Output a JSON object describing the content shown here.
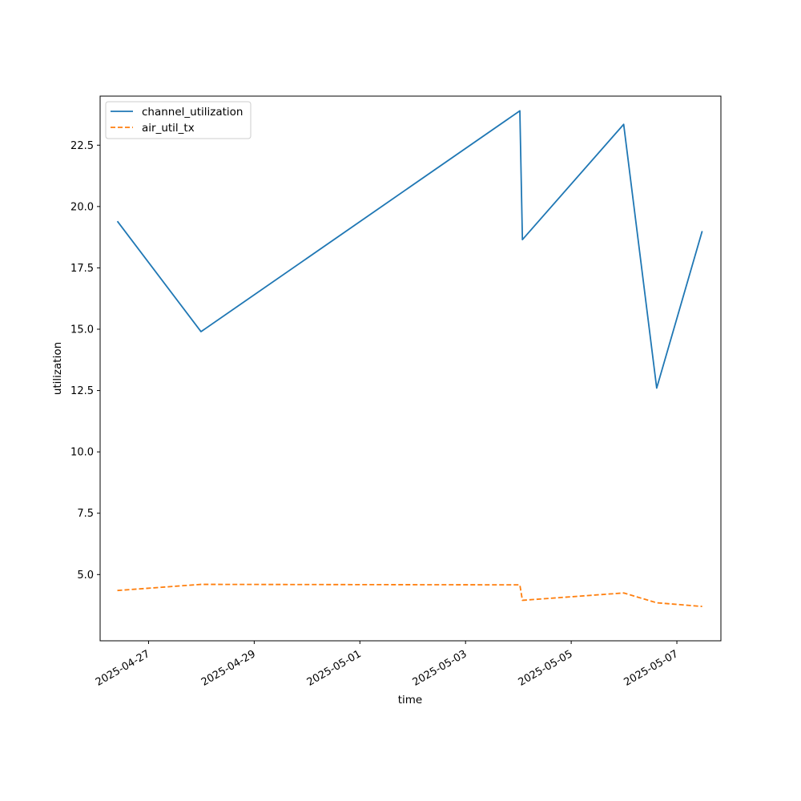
{
  "chart_data": {
    "type": "line",
    "xlabel": "time",
    "ylabel": "utilization",
    "x_axis_type": "date",
    "xlim": [
      "2025-04-26T02:00",
      "2025-05-07T20:00"
    ],
    "ylim": [
      2.3,
      24.5
    ],
    "x_ticks": [
      "2025-04-27",
      "2025-04-29",
      "2025-05-01",
      "2025-05-03",
      "2025-05-05",
      "2025-05-07"
    ],
    "y_ticks": [
      "5.0",
      "7.5",
      "10.0",
      "12.5",
      "15.0",
      "17.5",
      "20.0",
      "22.5"
    ],
    "grid": false,
    "legend_placement": "top-left",
    "series": [
      {
        "name": "channel_utilization",
        "color": "#1f77b4",
        "line_style": "solid",
        "points": [
          {
            "x": "2025-04-26T09:50",
            "y": 19.4
          },
          {
            "x": "2025-04-27T23:50",
            "y": 14.9
          },
          {
            "x": "2025-05-04T00:40",
            "y": 23.9
          },
          {
            "x": "2025-05-04T01:50",
            "y": 18.65
          },
          {
            "x": "2025-05-05T23:50",
            "y": 23.35
          },
          {
            "x": "2025-05-06T14:50",
            "y": 12.6
          },
          {
            "x": "2025-05-07T11:30",
            "y": 19.0
          }
        ]
      },
      {
        "name": "air_util_tx",
        "color": "#ff7f0e",
        "line_style": "dashed",
        "points": [
          {
            "x": "2025-04-26T09:50",
            "y": 4.35
          },
          {
            "x": "2025-04-27T23:50",
            "y": 4.6
          },
          {
            "x": "2025-05-04T00:40",
            "y": 4.58
          },
          {
            "x": "2025-05-04T01:50",
            "y": 3.95
          },
          {
            "x": "2025-05-05T23:50",
            "y": 4.25
          },
          {
            "x": "2025-05-06T14:50",
            "y": 3.85
          },
          {
            "x": "2025-05-07T11:30",
            "y": 3.7
          }
        ]
      }
    ]
  }
}
